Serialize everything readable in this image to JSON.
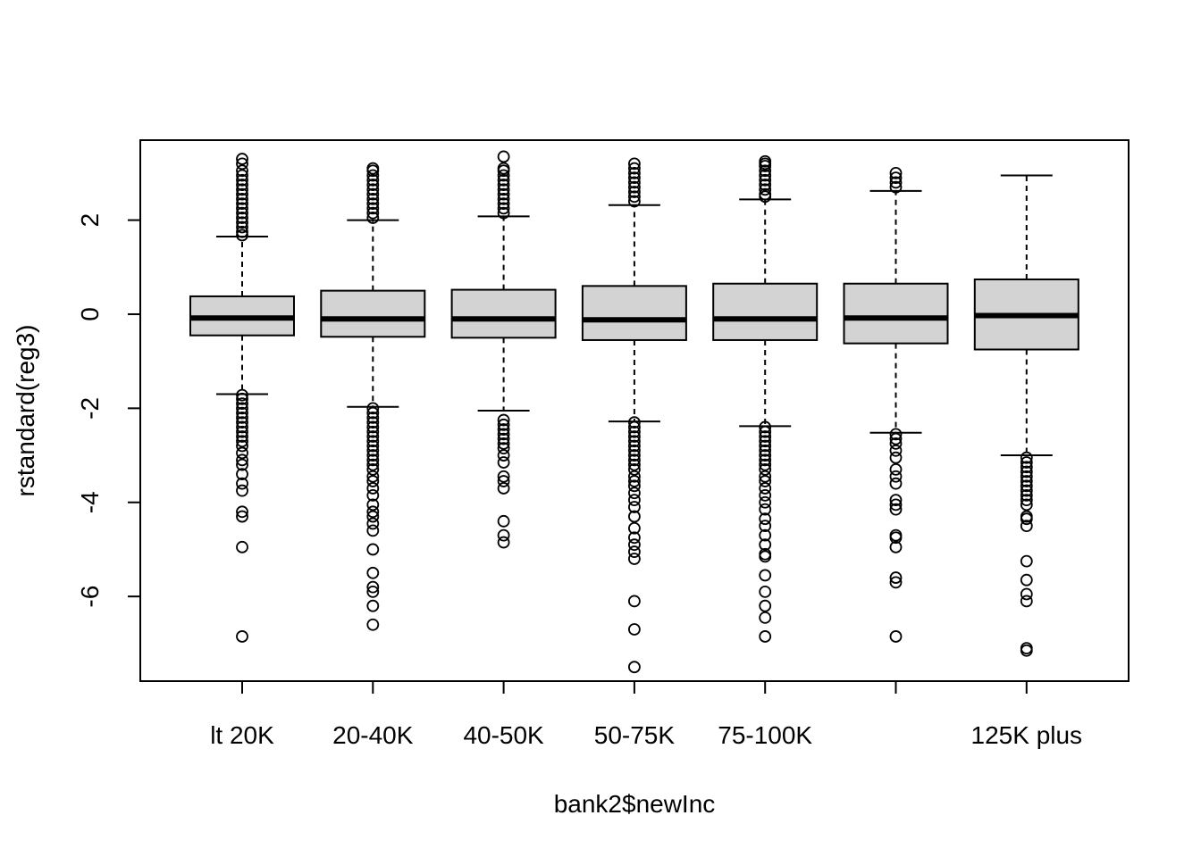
{
  "chart_data": {
    "type": "box",
    "xlabel": "bank2$newInc",
    "ylabel": "rstandard(reg3)",
    "ylim": [
      -7.8,
      3.7
    ],
    "yticks": [
      -6,
      -4,
      -2,
      0,
      2
    ],
    "grid": false,
    "categories": [
      "lt 20K",
      "20-40K",
      "40-50K",
      "50-75K",
      "75-100K",
      "",
      "125K plus"
    ],
    "box_fill": "#d3d3d3",
    "series": [
      {
        "lower_whisker": -1.7,
        "q1": -0.45,
        "median": -0.08,
        "q3": 0.38,
        "upper_whisker": 1.65,
        "outliers": [
          3.3,
          3.2,
          3.05,
          2.95,
          2.85,
          2.75,
          2.65,
          2.55,
          2.45,
          2.35,
          2.25,
          2.15,
          2.05,
          1.95,
          1.85,
          1.75,
          1.68,
          -1.72,
          -1.8,
          -1.9,
          -2.0,
          -2.1,
          -2.2,
          -2.3,
          -2.4,
          -2.5,
          -2.6,
          -2.7,
          -2.8,
          -2.95,
          -3.1,
          -3.2,
          -3.4,
          -3.6,
          -3.75,
          -4.2,
          -4.3,
          -4.95,
          -6.85
        ]
      },
      {
        "lower_whisker": -1.97,
        "q1": -0.48,
        "median": -0.1,
        "q3": 0.5,
        "upper_whisker": 2.0,
        "outliers": [
          3.1,
          3.05,
          2.95,
          2.85,
          2.75,
          2.65,
          2.55,
          2.45,
          2.35,
          2.25,
          2.15,
          2.05,
          -2.0,
          -2.1,
          -2.2,
          -2.3,
          -2.4,
          -2.5,
          -2.6,
          -2.7,
          -2.8,
          -2.9,
          -3.0,
          -3.1,
          -3.2,
          -3.3,
          -3.45,
          -3.55,
          -3.7,
          -3.85,
          -4.05,
          -4.2,
          -4.3,
          -4.45,
          -4.6,
          -5.0,
          -5.5,
          -5.8,
          -5.9,
          -6.2,
          -6.6
        ]
      },
      {
        "lower_whisker": -2.05,
        "q1": -0.5,
        "median": -0.1,
        "q3": 0.52,
        "upper_whisker": 2.08,
        "outliers": [
          3.35,
          3.1,
          3.05,
          2.95,
          2.85,
          2.75,
          2.65,
          2.55,
          2.45,
          2.35,
          2.25,
          2.15,
          -2.25,
          -2.35,
          -2.45,
          -2.55,
          -2.65,
          -2.75,
          -2.85,
          -3.0,
          -3.15,
          -3.45,
          -3.55,
          -3.7,
          -4.4,
          -4.7,
          -4.85
        ]
      },
      {
        "lower_whisker": -2.28,
        "q1": -0.55,
        "median": -0.12,
        "q3": 0.6,
        "upper_whisker": 2.32,
        "outliers": [
          3.2,
          3.1,
          3.0,
          2.9,
          2.8,
          2.7,
          2.6,
          2.5,
          2.4,
          -2.3,
          -2.4,
          -2.5,
          -2.6,
          -2.7,
          -2.8,
          -2.9,
          -3.0,
          -3.1,
          -3.2,
          -3.3,
          -3.45,
          -3.55,
          -3.65,
          -3.8,
          -3.95,
          -4.1,
          -4.3,
          -4.55,
          -4.75,
          -4.9,
          -5.05,
          -5.2,
          -6.1,
          -6.7,
          -7.5
        ]
      },
      {
        "lower_whisker": -2.38,
        "q1": -0.55,
        "median": -0.1,
        "q3": 0.65,
        "upper_whisker": 2.44,
        "outliers": [
          3.25,
          3.2,
          3.15,
          3.05,
          2.95,
          2.85,
          2.75,
          2.65,
          2.55,
          2.5,
          -2.4,
          -2.5,
          -2.6,
          -2.7,
          -2.8,
          -2.9,
          -3.0,
          -3.1,
          -3.2,
          -3.3,
          -3.45,
          -3.55,
          -3.7,
          -3.85,
          -4.0,
          -4.15,
          -4.35,
          -4.5,
          -4.7,
          -4.9,
          -5.1,
          -5.15,
          -5.55,
          -5.9,
          -6.2,
          -6.45,
          -6.85
        ]
      },
      {
        "lower_whisker": -2.52,
        "q1": -0.62,
        "median": -0.08,
        "q3": 0.65,
        "upper_whisker": 2.62,
        "outliers": [
          3.0,
          2.9,
          2.8,
          2.7,
          -2.55,
          -2.65,
          -2.75,
          -2.9,
          -3.05,
          -3.3,
          -3.45,
          -3.6,
          -3.95,
          -4.05,
          -4.15,
          -4.7,
          -4.75,
          -4.95,
          -5.6,
          -5.7,
          -6.85
        ]
      },
      {
        "lower_whisker": -3.0,
        "q1": -0.75,
        "median": -0.03,
        "q3": 0.74,
        "upper_whisker": 2.95,
        "outliers": [
          -3.05,
          -3.15,
          -3.25,
          -3.35,
          -3.45,
          -3.55,
          -3.65,
          -3.75,
          -3.85,
          -3.95,
          -4.05,
          -4.3,
          -4.35,
          -4.5,
          -5.25,
          -5.65,
          -5.95,
          -6.1,
          -7.1,
          -7.15
        ]
      }
    ]
  }
}
